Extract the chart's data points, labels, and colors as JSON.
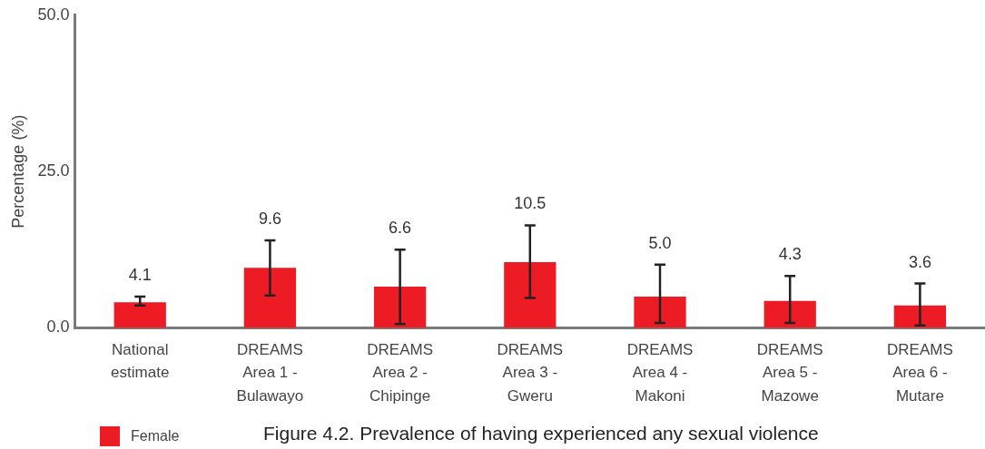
{
  "chart_data": {
    "type": "bar",
    "ylabel": "Percentage (%)",
    "categories": [
      "National estimate",
      "DREAMS Area 1 - Bulawayo",
      "DREAMS Area 2 - Chipinge",
      "DREAMS Area 3 - Gweru",
      "DREAMS Area 4 - Makoni",
      "DREAMS Area 5 - Mazowe",
      "DREAMS Area 6 - Mutare"
    ],
    "series": [
      {
        "name": "Female",
        "color": "#ed1c24",
        "values": [
          4.1,
          9.6,
          6.6,
          10.5,
          5.0,
          4.3,
          3.6
        ],
        "value_labels": [
          "4.1",
          "9.6",
          "6.6",
          "10.5",
          "5.0",
          "4.3",
          "3.6"
        ],
        "errors": [
          [
            3.6,
            5.0
          ],
          [
            5.2,
            14.0
          ],
          [
            0.6,
            12.5
          ],
          [
            4.8,
            16.4
          ],
          [
            0.8,
            10.1
          ],
          [
            0.8,
            8.3
          ],
          [
            0.4,
            7.1
          ]
        ]
      }
    ],
    "ylim": [
      0,
      50
    ],
    "yticks": [
      {
        "value": 0,
        "label": "0.0"
      },
      {
        "value": 25,
        "label": "25.0"
      },
      {
        "value": 50,
        "label": "50.0"
      }
    ],
    "grid": false,
    "legend": "bottom left",
    "annotations": [
      "Figure 4.2. Prevalence of having experienced any sexual violence"
    ]
  }
}
